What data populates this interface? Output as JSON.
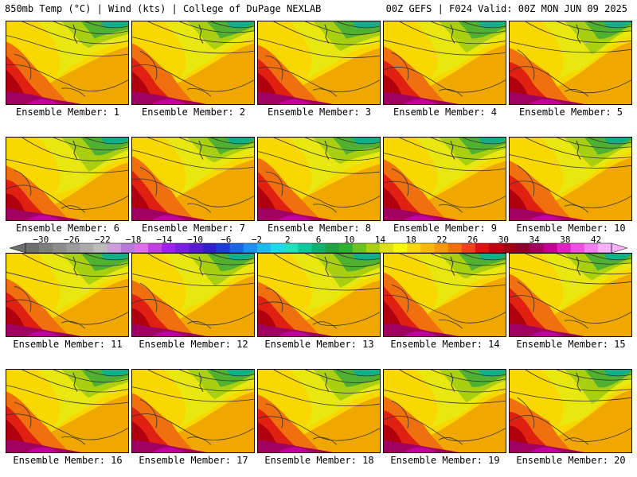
{
  "header": {
    "left": "850mb Temp (°C) | Wind (kts) | College of DuPage NEXLAB",
    "right": "00Z GEFS | F024 Valid: 00Z MON JUN 09 2025"
  },
  "members": [
    {
      "label": "Ensemble Member: 1"
    },
    {
      "label": "Ensemble Member: 2"
    },
    {
      "label": "Ensemble Member: 3"
    },
    {
      "label": "Ensemble Member: 4"
    },
    {
      "label": "Ensemble Member: 5"
    },
    {
      "label": "Ensemble Member: 6"
    },
    {
      "label": "Ensemble Member: 7"
    },
    {
      "label": "Ensemble Member: 8"
    },
    {
      "label": "Ensemble Member: 9"
    },
    {
      "label": "Ensemble Member: 10"
    },
    {
      "label": "Ensemble Member: 11"
    },
    {
      "label": "Ensemble Member: 12"
    },
    {
      "label": "Ensemble Member: 13"
    },
    {
      "label": "Ensemble Member: 14"
    },
    {
      "label": "Ensemble Member: 15"
    },
    {
      "label": "Ensemble Member: 16"
    },
    {
      "label": "Ensemble Member: 17"
    },
    {
      "label": "Ensemble Member: 18"
    },
    {
      "label": "Ensemble Member: 19"
    },
    {
      "label": "Ensemble Member: 20"
    }
  ],
  "colorbar": {
    "labels": [
      "−30",
      "−26",
      "−22",
      "−18",
      "−14",
      "−10",
      "−6",
      "−2",
      "2",
      "6",
      "10",
      "14",
      "18",
      "22",
      "26",
      "30",
      "34",
      "38",
      "42"
    ],
    "colors": [
      "#6e6e6e",
      "#7d7d7d",
      "#8c8c8c",
      "#9c9c9c",
      "#ababab",
      "#bcbcbc",
      "#c9a0dc",
      "#b77ad8",
      "#e070e8",
      "#c040e0",
      "#a020f0",
      "#7a1ee0",
      "#5a1ad0",
      "#3020c8",
      "#1c3cd8",
      "#1e64e6",
      "#2090f0",
      "#20b8f0",
      "#20d8e8",
      "#20e0c0",
      "#10c8a0",
      "#10b070",
      "#20a040",
      "#30b030",
      "#70c020",
      "#a8d010",
      "#e0e010",
      "#f8f800",
      "#f8d800",
      "#f8b800",
      "#f89800",
      "#f07010",
      "#f04020",
      "#e01010",
      "#c00010",
      "#a00010",
      "#8c0030",
      "#a00060",
      "#c00090",
      "#e020c0",
      "#f050e0",
      "#f080f0",
      "#f8b0f8"
    ],
    "scale": {
      "min": -32,
      "max": 44
    }
  }
}
